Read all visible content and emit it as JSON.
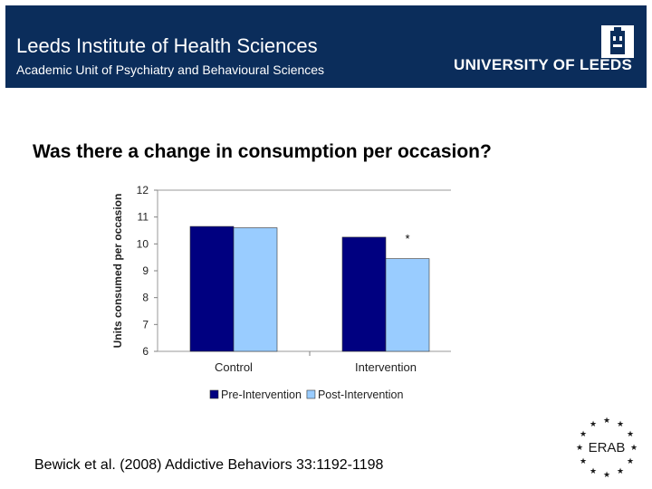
{
  "header": {
    "institute": "Leeds Institute of Health Sciences",
    "unit": "Academic Unit of Psychiatry and Behavioural Sciences",
    "university": "UNIVERSITY OF LEEDS"
  },
  "question": "Was there a change in consumption per occasion?",
  "citation": "Bewick et al. (2008) Addictive Behaviors 33:1192-1198",
  "erab_logo_text": "ERAB",
  "colors": {
    "header": "#0b2d5b",
    "pre": "#000080",
    "post": "#99ccff"
  },
  "chart_data": {
    "type": "bar",
    "categories": [
      "Control",
      "Intervention"
    ],
    "series": [
      {
        "name": "Pre-Intervention",
        "values": [
          10.65,
          10.25
        ],
        "color": "#000080"
      },
      {
        "name": "Post-Intervention",
        "values": [
          10.6,
          9.45
        ],
        "color": "#99ccff"
      }
    ],
    "ylabel": "Units consumed per occasion",
    "ylim": [
      6,
      12
    ],
    "yticks": [
      6,
      7,
      8,
      9,
      10,
      11,
      12
    ],
    "annotations": [
      {
        "text": "*",
        "category": "Intervention",
        "series": "Post-Intervention"
      }
    ],
    "legend": "bottom",
    "grid": false
  }
}
